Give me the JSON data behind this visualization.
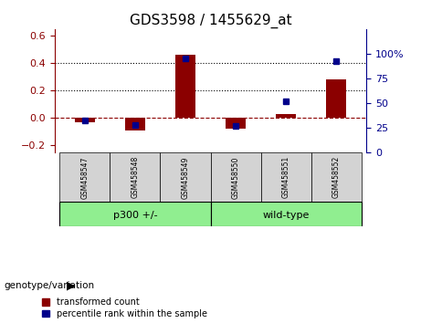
{
  "title": "GDS3598 / 1455629_at",
  "samples": [
    "GSM458547",
    "GSM458548",
    "GSM458549",
    "GSM458550",
    "GSM458551",
    "GSM458552"
  ],
  "transformed_count": [
    -0.03,
    -0.09,
    0.46,
    -0.08,
    0.03,
    0.28
  ],
  "percentile_rank": [
    32,
    28,
    95,
    27,
    52,
    92
  ],
  "bar_color": "#8B0000",
  "point_color": "#00008B",
  "ylim_left": [
    -0.25,
    0.65
  ],
  "ylim_right": [
    0,
    125
  ],
  "yticks_left": [
    -0.2,
    0.0,
    0.2,
    0.4,
    0.6
  ],
  "yticks_right": [
    0,
    25,
    50,
    75,
    100
  ],
  "ytick_labels_right": [
    "0",
    "25",
    "50",
    "75",
    "100%"
  ],
  "hlines": [
    0.2,
    0.4
  ],
  "zero_line_color": "#8B0000",
  "dotted_line_color": "black",
  "group_label": "genotype/variation",
  "legend_bar_label": "transformed count",
  "legend_point_label": "percentile rank within the sample",
  "sample_box_color": "#d3d3d3",
  "group_box_color": "#90EE90",
  "group_boundaries": [
    [
      -0.5,
      2.5,
      "p300 +/-"
    ],
    [
      2.5,
      5.5,
      "wild-type"
    ]
  ]
}
